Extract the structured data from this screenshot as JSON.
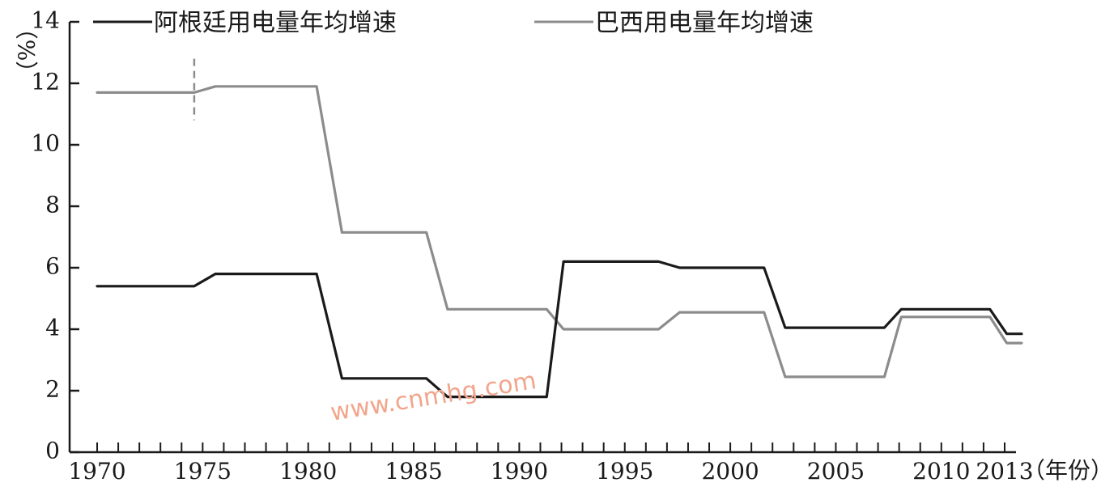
{
  "chart_data": {
    "type": "line",
    "title": "",
    "xlabel": "（年份）",
    "ylabel": "（%）",
    "ylim": [
      0,
      14
    ],
    "xlim": [
      1970,
      2013
    ],
    "grid": false,
    "legend_position": "top",
    "y_ticks": [
      "0",
      "2",
      "4",
      "6",
      "8",
      "10",
      "12",
      "14"
    ],
    "x_ticks": [
      "1970",
      "1975",
      "1980",
      "1985",
      "1990",
      "1995",
      "2000",
      "2005",
      "2010",
      "2013"
    ],
    "series": [
      {
        "name": "阿根廷用电量年均增速",
        "color": "#1a1a1a",
        "x": [
          1970,
          1974.6,
          1975.6,
          1980.4,
          1981.6,
          1985.6,
          1986.6,
          1991.3,
          1992.1,
          1996.6,
          1997.6,
          2001.6,
          2002.6,
          2007.3,
          2008.1,
          2012.3,
          2013.1,
          2013.8
        ],
        "y": [
          5.4,
          5.4,
          5.8,
          5.8,
          2.4,
          2.4,
          1.8,
          1.8,
          6.2,
          6.2,
          6.0,
          6.0,
          4.05,
          4.05,
          4.65,
          4.65,
          3.85,
          3.85
        ]
      },
      {
        "name": "巴西用电量年均增速",
        "color": "#8c8c8c",
        "x": [
          1970,
          1974.6,
          1975.6,
          1980.4,
          1981.6,
          1985.6,
          1986.6,
          1991.3,
          1992.1,
          1996.6,
          1997.6,
          2001.6,
          2002.6,
          2007.3,
          2008.1,
          2012.3,
          2013.1,
          2013.8
        ],
        "y": [
          11.7,
          11.7,
          11.9,
          11.9,
          7.15,
          7.15,
          4.65,
          4.65,
          4.0,
          4.0,
          4.55,
          4.55,
          2.45,
          2.45,
          4.4,
          4.4,
          3.55,
          3.55
        ]
      }
    ],
    "annotations": [
      {
        "type": "dashed-vline",
        "x": 1974.6,
        "y_range": [
          10.8,
          12.8
        ],
        "color": "#8c8c8c"
      }
    ],
    "watermark": "www.cnmhg.com"
  }
}
